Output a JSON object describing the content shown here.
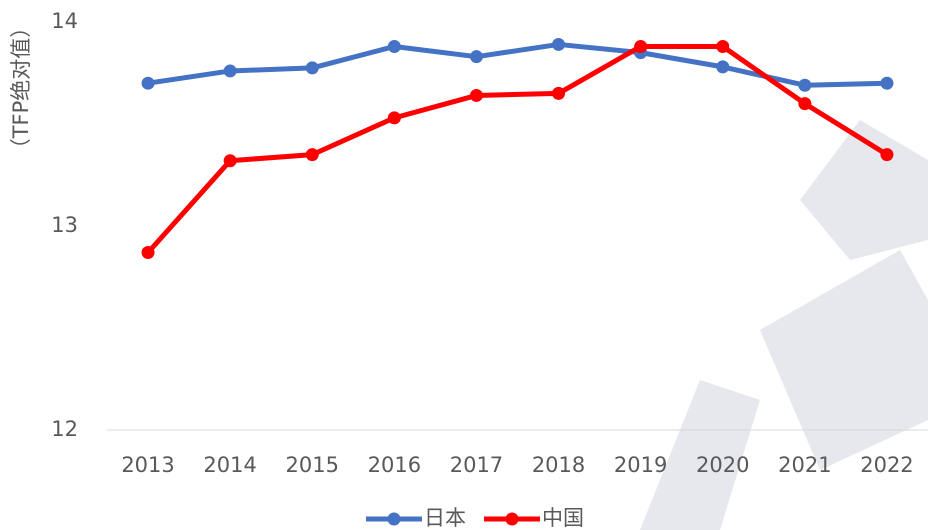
{
  "chart_data": {
    "type": "line",
    "y_label": "（TFP绝对值）",
    "categories": [
      "2013",
      "2014",
      "2015",
      "2016",
      "2017",
      "2018",
      "2019",
      "2020",
      "2021",
      "2022"
    ],
    "series": [
      {
        "name": "日本",
        "color": "#4472c4",
        "values": [
          13.7,
          13.76,
          13.775,
          13.88,
          13.83,
          13.89,
          13.85,
          13.78,
          13.69,
          13.7
        ]
      },
      {
        "name": "中国",
        "color": "#ff0000",
        "values": [
          12.87,
          13.32,
          13.35,
          13.53,
          13.64,
          13.65,
          13.88,
          13.88,
          13.6,
          13.35
        ]
      }
    ],
    "ylim": [
      12,
      14
    ],
    "yticks": [
      12,
      13,
      14
    ],
    "grid": false,
    "legend": "bottom"
  }
}
